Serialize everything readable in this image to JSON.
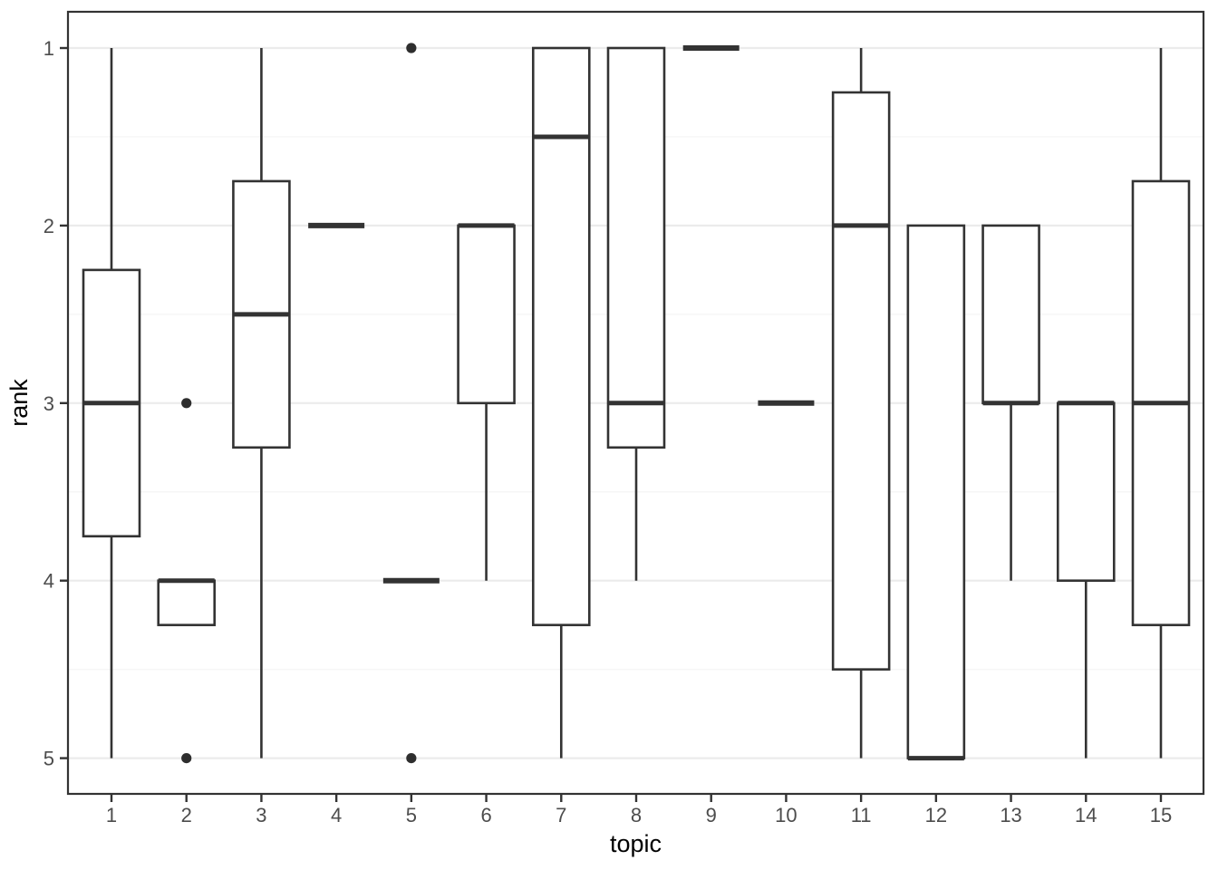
{
  "chart_data": {
    "type": "boxplot",
    "title": "",
    "xlabel": "topic",
    "ylabel": "rank",
    "x_tick_labels": [
      "1",
      "2",
      "3",
      "4",
      "5",
      "6",
      "7",
      "8",
      "9",
      "10",
      "11",
      "12",
      "13",
      "14",
      "15"
    ],
    "y_tick_labels": [
      "1",
      "2",
      "3",
      "4",
      "5"
    ],
    "y_ticks": [
      1,
      2,
      3,
      4,
      5
    ],
    "y_minor_ticks": [
      1.5,
      2.5,
      3.5,
      4.5
    ],
    "y_axis_reversed": true,
    "ylim": [
      1,
      5
    ],
    "grid": true,
    "legend": false,
    "series": [
      {
        "topic": "1",
        "min": 1,
        "q1": 2.25,
        "median": 3,
        "q3": 3.75,
        "max": 5,
        "outliers": []
      },
      {
        "topic": "2",
        "min": 4,
        "q1": 4,
        "median": 4,
        "q3": 4.25,
        "max": 4.25,
        "outliers": [
          3,
          5
        ]
      },
      {
        "topic": "3",
        "min": 1,
        "q1": 1.75,
        "median": 2.5,
        "q3": 3.25,
        "max": 5,
        "outliers": []
      },
      {
        "topic": "4",
        "min": 2,
        "q1": 2,
        "median": 2,
        "q3": 2,
        "max": 2,
        "outliers": []
      },
      {
        "topic": "5",
        "min": 4,
        "q1": 4,
        "median": 4,
        "q3": 4,
        "max": 4,
        "outliers": [
          1,
          5
        ]
      },
      {
        "topic": "6",
        "min": 2,
        "q1": 2,
        "median": 2,
        "q3": 3,
        "max": 4,
        "outliers": []
      },
      {
        "topic": "7",
        "min": 1,
        "q1": 1,
        "median": 1.5,
        "q3": 4.25,
        "max": 5,
        "outliers": []
      },
      {
        "topic": "8",
        "min": 1,
        "q1": 1,
        "median": 3,
        "q3": 3.25,
        "max": 4,
        "outliers": []
      },
      {
        "topic": "9",
        "min": 1,
        "q1": 1,
        "median": 1,
        "q3": 1,
        "max": 1,
        "outliers": []
      },
      {
        "topic": "10",
        "min": 3,
        "q1": 3,
        "median": 3,
        "q3": 3,
        "max": 3,
        "outliers": []
      },
      {
        "topic": "11",
        "min": 1,
        "q1": 1.25,
        "median": 2,
        "q3": 4.5,
        "max": 5,
        "outliers": []
      },
      {
        "topic": "12",
        "min": 2,
        "q1": 2,
        "median": 5,
        "q3": 5,
        "max": 5,
        "outliers": []
      },
      {
        "topic": "13",
        "min": 2,
        "q1": 2,
        "median": 3,
        "q3": 3,
        "max": 4,
        "outliers": []
      },
      {
        "topic": "14",
        "min": 3,
        "q1": 3,
        "median": 3,
        "q3": 4,
        "max": 5,
        "outliers": []
      },
      {
        "topic": "15",
        "min": 1,
        "q1": 1.75,
        "median": 3,
        "q3": 4.25,
        "max": 5,
        "outliers": []
      }
    ],
    "colors": {
      "background": "#ffffff",
      "panel_border": "#333333",
      "box_stroke": "#333333",
      "box_fill": "#ffffff",
      "grid_major": "#ebebeb",
      "grid_minor": "#f6f6f6",
      "tick_mark": "#333333",
      "tick_label": "#4d4d4d",
      "axis_title": "#000000",
      "outlier": "#2e2e2e"
    }
  }
}
